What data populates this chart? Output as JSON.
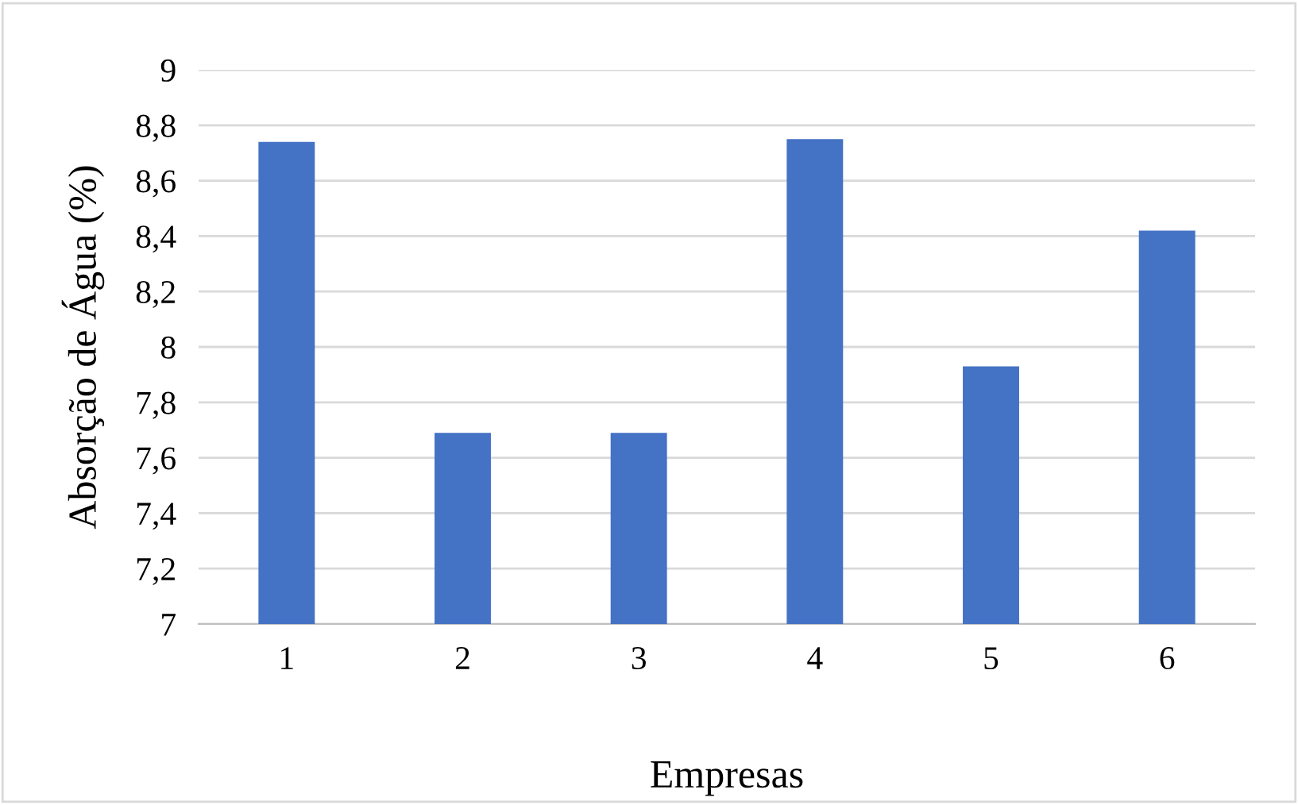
{
  "chart_data": {
    "type": "bar",
    "xlabel": "Empresas",
    "ylabel": "Absorção de Água (%)",
    "categories": [
      "1",
      "2",
      "3",
      "4",
      "5",
      "6"
    ],
    "values": [
      8.74,
      7.69,
      7.69,
      8.75,
      7.93,
      8.42
    ],
    "color": "#4472c4",
    "ylim": [
      7,
      9
    ],
    "yticks": [
      7,
      {
        "value": 7.2,
        "label": "7,2"
      },
      {
        "value": 7.4,
        "label": "7,4"
      },
      {
        "value": 7.6,
        "label": "7,6"
      },
      {
        "value": 7.8,
        "label": "7,8"
      },
      8,
      {
        "value": 8.2,
        "label": "8,2"
      },
      {
        "value": 8.4,
        "label": "8,4"
      },
      {
        "value": 8.6,
        "label": "8,6"
      },
      {
        "value": 8.8,
        "label": "8,8"
      },
      9
    ],
    "grid": "y"
  }
}
